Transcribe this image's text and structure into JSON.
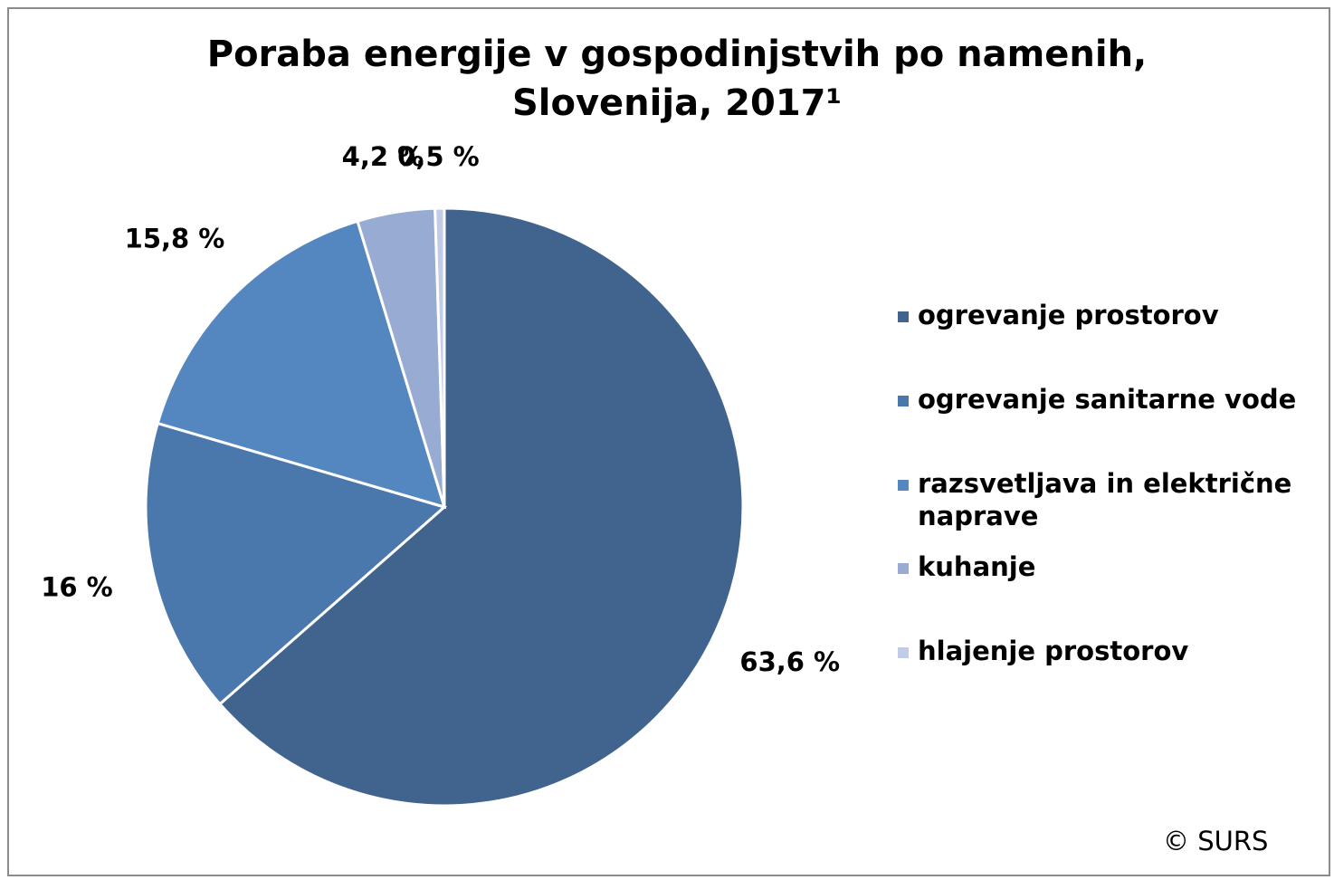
{
  "chart_data": {
    "type": "pie",
    "title": [
      "Poraba energije v gospodinjstvih po namenih,",
      "Slovenija, 2017¹"
    ],
    "categories": [
      "ogrevanje prostorov",
      "ogrevanje sanitarne vode",
      "razsvetljava in električne naprave",
      "kuhanje",
      "hlajenje prostorov"
    ],
    "values": [
      63.6,
      16,
      15.8,
      4.2,
      0.5
    ],
    "value_labels": [
      "63,6 %",
      "16 %",
      "15,8 %",
      "4,2 %",
      "0,5 %"
    ],
    "colors": [
      "#41648f",
      "#4a78ad",
      "#5487c0",
      "#97abd3",
      "#c1cde6"
    ],
    "legend": "right",
    "source": "© SURS"
  }
}
